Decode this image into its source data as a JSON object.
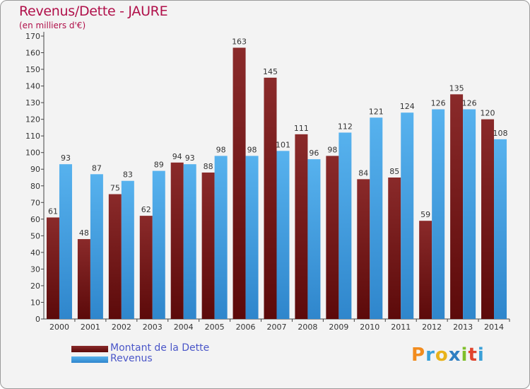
{
  "header": {
    "title": "Revenus/Dette - JAURE",
    "subtitle": "(en milliers d'€)"
  },
  "chart_data": {
    "type": "bar",
    "categories": [
      "2000",
      "2001",
      "2002",
      "2003",
      "2004",
      "2005",
      "2006",
      "2007",
      "2008",
      "2009",
      "2010",
      "2011",
      "2012",
      "2013",
      "2014"
    ],
    "series": [
      {
        "name": "Montant de la Dette",
        "color": "#7a1b1b",
        "values": [
          61,
          48,
          75,
          62,
          94,
          88,
          163,
          145,
          111,
          98,
          84,
          85,
          59,
          135,
          120
        ]
      },
      {
        "name": "Revenus",
        "color": "#3f9de0",
        "values": [
          93,
          87,
          83,
          89,
          93,
          98,
          98,
          101,
          96,
          112,
          121,
          124,
          126,
          126,
          108
        ]
      }
    ],
    "ylim": [
      0,
      170
    ],
    "yticks": [
      0,
      10,
      20,
      30,
      40,
      50,
      60,
      70,
      80,
      90,
      100,
      110,
      120,
      130,
      140,
      150,
      160,
      170
    ],
    "grid": false,
    "legend_position": "bottom-left"
  },
  "logo": {
    "letters": [
      "P",
      "r",
      "o",
      "x",
      "i",
      "t",
      "i"
    ],
    "colors": [
      "#f28c1e",
      "#3aa0d8",
      "#e8b21a",
      "#2f7fc2",
      "#7fbf2a",
      "#e0442d",
      "#3aa0d8"
    ]
  }
}
